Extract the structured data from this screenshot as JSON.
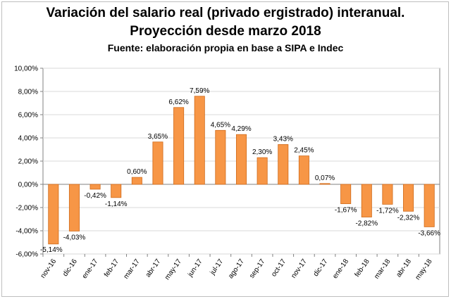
{
  "chart_data": {
    "type": "bar",
    "title": "Variación del salario real (privado ergistrado) interanual.",
    "subtitle": "Proyección desde marzo 2018",
    "source": "Fuente: elaboración propia en base a SIPA e Indec",
    "categories": [
      "nov-16",
      "dic-16",
      "ene-17",
      "feb-17",
      "mar-17",
      "abr-17",
      "may-17",
      "jun-17",
      "jul-17",
      "ago-17",
      "sep-17",
      "oct-17",
      "nov-17",
      "dic-17",
      "ene-18",
      "feb-18",
      "mar-18",
      "abr-18",
      "may-18"
    ],
    "values": [
      -5.14,
      -4.03,
      -0.42,
      -1.14,
      0.6,
      3.65,
      6.62,
      7.59,
      4.65,
      4.29,
      2.3,
      3.43,
      2.45,
      0.07,
      -1.67,
      -2.82,
      -1.72,
      -2.32,
      -3.66
    ],
    "data_labels": [
      "-5,14%",
      "-4,03%",
      "-0,42%",
      "-1,14%",
      "0,60%",
      "3,65%",
      "6,62%",
      "7,59%",
      "4,65%",
      "4,29%",
      "2,30%",
      "3,43%",
      "2,45%",
      "0,07%",
      "-1,67%",
      "-2,82%",
      "-1,72%",
      "-2,32%",
      "-3,66%"
    ],
    "y_ticks": [
      -6,
      -4,
      -2,
      0,
      2,
      4,
      6,
      8,
      10
    ],
    "y_tick_labels": [
      "-6,00%",
      "-4,00%",
      "-2,00%",
      "0,00%",
      "2,00%",
      "4,00%",
      "6,00%",
      "8,00%",
      "10,00%"
    ],
    "ylim": [
      -6,
      10
    ],
    "grid": true,
    "legend": "none",
    "colors": {
      "bar_fill": "#f79646",
      "bar_stroke": "#d06a1a",
      "grid": "#d9d9d9",
      "axis": "#808080"
    }
  }
}
